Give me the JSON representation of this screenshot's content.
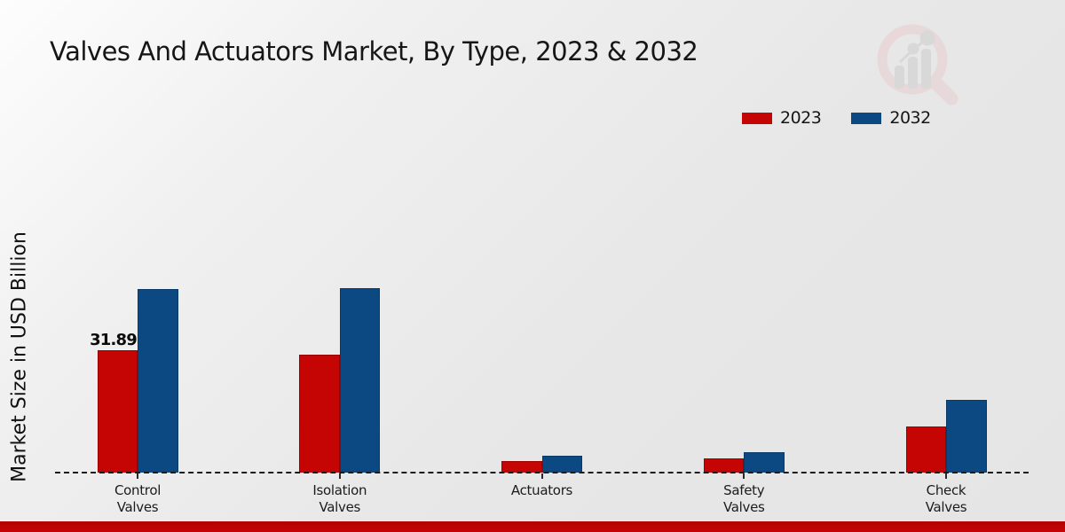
{
  "header": {
    "title": "Valves And Actuators Market, By Type, 2023 & 2032"
  },
  "legend": {
    "items": [
      {
        "label": "2023",
        "color": "#c50404"
      },
      {
        "label": "2032",
        "color": "#0c4983"
      }
    ]
  },
  "axes": {
    "y_label": "Market Size in USD Billion"
  },
  "watermark": {
    "name": "magnifier-bar-chart-logo"
  },
  "footer": {
    "bar_color": "#c50404"
  },
  "chart_data": {
    "type": "bar",
    "title": "Valves And Actuators Market, By Type, 2023 & 2032",
    "xlabel": "",
    "ylabel": "Market Size in USD Billion",
    "categories": [
      "Control Valves",
      "Isolation Valves",
      "Actuators",
      "Safety Valves",
      "Check Valves"
    ],
    "series": [
      {
        "name": "2023",
        "color": "#c50404",
        "values": [
          31.89,
          30.6,
          2.9,
          3.7,
          12.1
        ]
      },
      {
        "name": "2032",
        "color": "#0c4983",
        "values": [
          47.7,
          47.9,
          4.5,
          5.4,
          18.8
        ]
      }
    ],
    "data_labels": [
      {
        "series": "2023",
        "category": "Control Valves",
        "text": "31.89"
      }
    ],
    "ylim": [
      0,
      50
    ],
    "grid": false,
    "baseline_style": "dashed",
    "legend_position": "top-right"
  }
}
